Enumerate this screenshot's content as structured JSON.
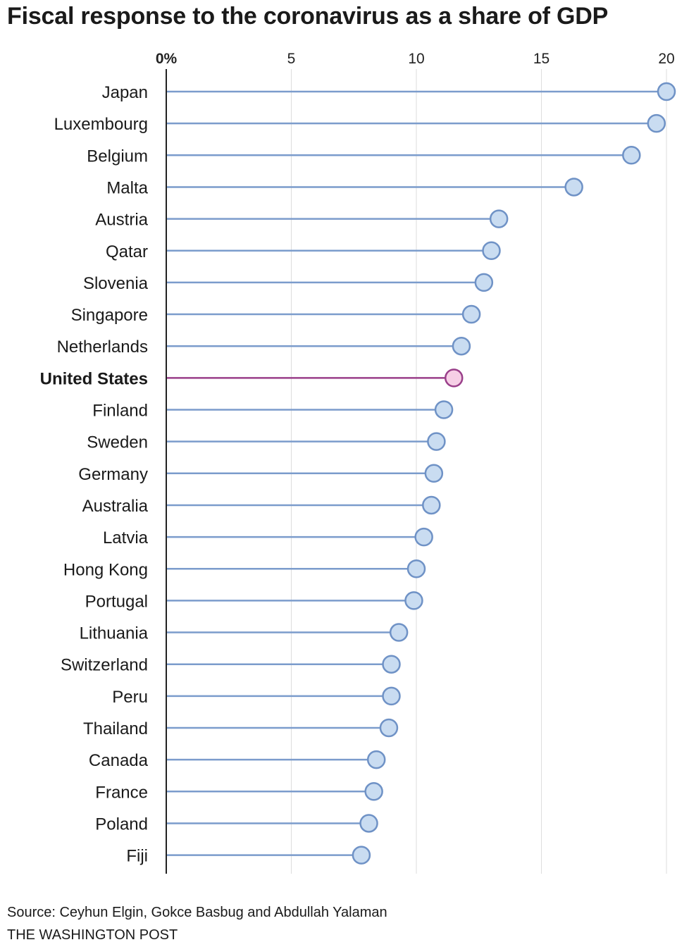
{
  "chart_data": {
    "type": "lollipop",
    "title": "Fiscal response to the coronavirus as a share of GDP",
    "xlabel": "",
    "ylabel": "",
    "xlim": [
      0,
      20
    ],
    "ticks": [
      0,
      5,
      10,
      15,
      20
    ],
    "tick_labels": [
      "0%",
      "5",
      "10",
      "15",
      "20"
    ],
    "highlight": "United States",
    "colors": {
      "line": "#7b9ccc",
      "dot_fill": "#c9dcf1",
      "dot_stroke": "#6f92c6",
      "highlight_line": "#9a3f8a",
      "highlight_fill": "#f6cfe6",
      "highlight_stroke": "#9a3f8a",
      "grid": "#dddddd",
      "axis": "#222222"
    },
    "categories": [
      "Japan",
      "Luxembourg",
      "Belgium",
      "Malta",
      "Austria",
      "Qatar",
      "Slovenia",
      "Singapore",
      "Netherlands",
      "United States",
      "Finland",
      "Sweden",
      "Germany",
      "Australia",
      "Latvia",
      "Hong Kong",
      "Portugal",
      "Lithuania",
      "Switzerland",
      "Peru",
      "Thailand",
      "Canada",
      "France",
      "Poland",
      "Fiji"
    ],
    "values": [
      20.0,
      19.6,
      18.6,
      16.3,
      13.3,
      13.0,
      12.7,
      12.2,
      11.8,
      11.5,
      11.1,
      10.8,
      10.7,
      10.6,
      10.3,
      10.0,
      9.9,
      9.3,
      9.0,
      9.0,
      8.9,
      8.4,
      8.3,
      8.1,
      7.8
    ]
  },
  "footer": {
    "source": "Source: Ceyhun Elgin, Gokce Basbug and Abdullah Yalaman",
    "publisher": "THE WASHINGTON POST"
  }
}
